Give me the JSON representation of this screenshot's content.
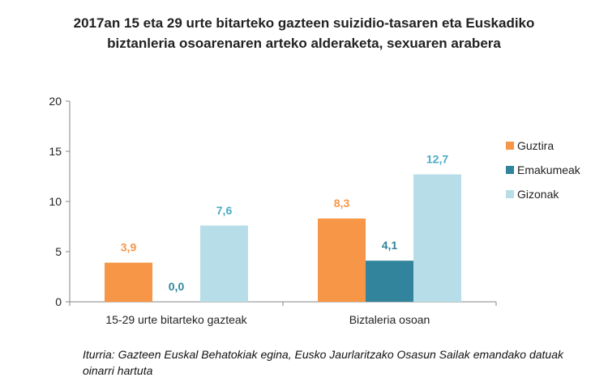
{
  "chart_data": {
    "type": "bar",
    "title_line1": "2017an 15 eta 29 urte bitarteko gazteen suizidio-tasaren eta Euskadiko",
    "title_line2": "biztanleria osoarenaren arteko alderaketa, sexuaren arabera",
    "categories": [
      "15-29 urte bitarteko gazteak",
      "Biztaleria osoan"
    ],
    "series": [
      {
        "name": "Guztira",
        "values": [
          3.9,
          8.3
        ],
        "labels": [
          "3,9",
          "8,3"
        ],
        "color": "#F79646",
        "label_color": "#F79646"
      },
      {
        "name": "Emakumeak",
        "values": [
          0.0,
          4.1
        ],
        "labels": [
          "0,0",
          "4,1"
        ],
        "color": "#31849B",
        "label_color": "#31849B"
      },
      {
        "name": "Gizonak",
        "values": [
          7.6,
          12.7
        ],
        "labels": [
          "7,6",
          "12,7"
        ],
        "color": "#B7DEE8",
        "label_color": "#4BACC6"
      }
    ],
    "yticks": [
      "0",
      "5",
      "10",
      "15",
      "20"
    ],
    "ylim": [
      0,
      20
    ],
    "grid": false,
    "legend": "right",
    "xlabel": "",
    "ylabel": ""
  },
  "source": "Iturria: Gazteen Euskal Behatokiak egina, Eusko Jaurlaritzako Osasun Sailak emandako datuak oinarri hartuta"
}
